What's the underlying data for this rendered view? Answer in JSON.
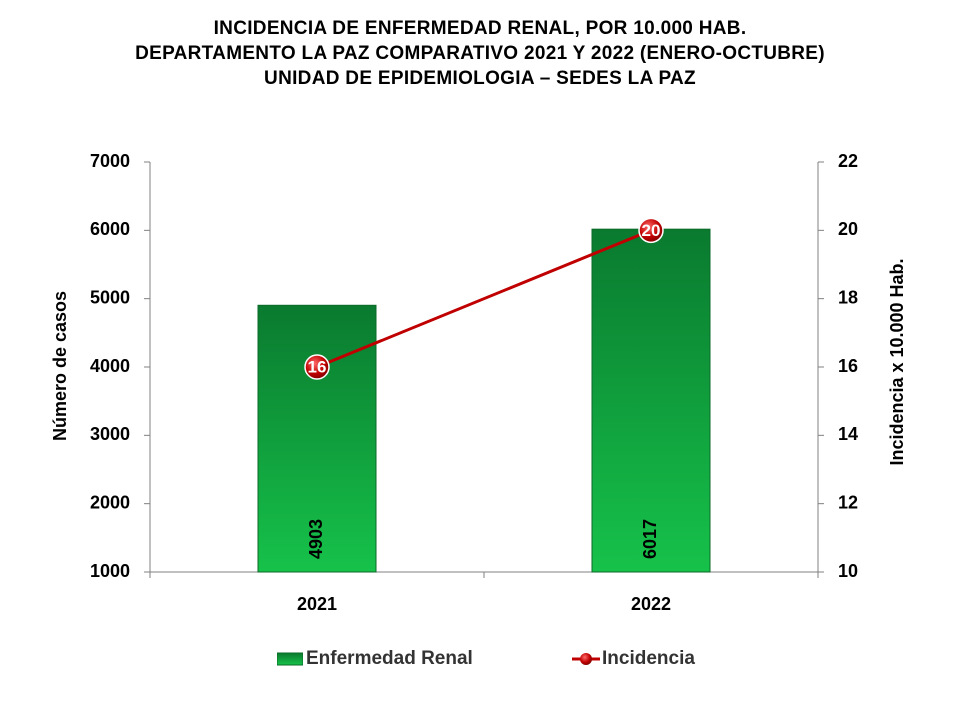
{
  "title_lines": [
    "INCIDENCIA  DE  ENFERMEDAD  RENAL,  POR 10.000  HAB.",
    "DEPARTAMENTO  LA PAZ  COMPARATIVO  2021  Y  2022 (ENERO-OCTUBRE)",
    "UNIDAD DE EPIDEMIOLOGIA – SEDES LA PAZ"
  ],
  "chart_data": {
    "type": "bar",
    "categories": [
      "2021",
      "2022"
    ],
    "series": [
      {
        "name": "Enfermedad Renal",
        "kind": "bar",
        "axis": "left",
        "values": [
          4903,
          6017
        ],
        "color": "#13a33c"
      },
      {
        "name": "Incidencia",
        "kind": "line",
        "axis": "right",
        "values": [
          16,
          20
        ],
        "color": "#c00000"
      }
    ],
    "ylabel": "Número de casos",
    "ylabel_right": "Incidencia x 10.000 Hab.",
    "ylim": [
      1000,
      7000
    ],
    "ylim_right": [
      10,
      22
    ],
    "yticks": [
      "1000",
      "2000",
      "3000",
      "4000",
      "5000",
      "6000",
      "7000"
    ],
    "yticks_right": [
      "10",
      "12",
      "14",
      "16",
      "18",
      "20",
      "22"
    ],
    "bar_labels": [
      "4903",
      "6017"
    ],
    "line_labels": [
      "16",
      "20"
    ],
    "legend_position": "bottom"
  }
}
